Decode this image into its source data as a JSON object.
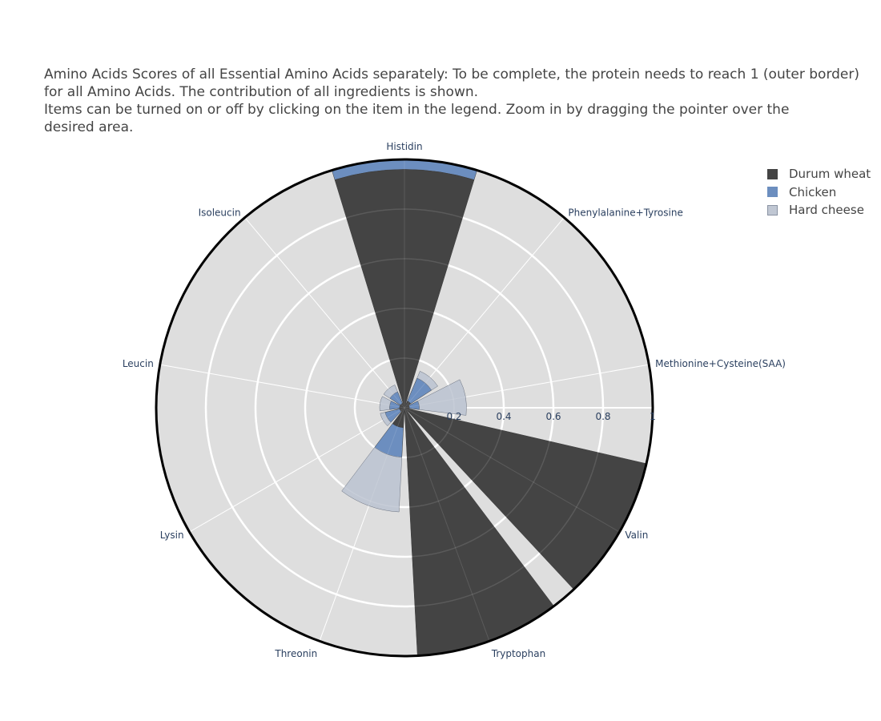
{
  "title": {
    "lines": [
      "Amino Acids Scores of all Essential Amino Acids separately: To be complete, the protein needs to reach 1 (outer border)",
      "for all Amino Acids. The contribution of all ingredients is shown.",
      "Items can be turned on or off by clicking on the item in the legend. Zoom in by dragging the pointer over the",
      "desired area."
    ]
  },
  "legend": {
    "items": [
      {
        "label": "Durum wheat",
        "color": "#444444"
      },
      {
        "label": "Chicken",
        "color": "#6c8ebf"
      },
      {
        "label": "Hard cheese",
        "color": "#c0c7d3"
      }
    ]
  },
  "chart_data": {
    "type": "barpolar",
    "stacked": true,
    "categories": [
      "Histidin",
      "Phenylalanine+Tyrosine",
      "Methionine+Cysteine(SAA)",
      "Valin",
      "Tryptophan",
      "Threonin",
      "Lysin",
      "Leucin",
      "Isoleucin"
    ],
    "category_angles_deg": [
      90,
      50,
      10,
      -30,
      -70,
      -110,
      -150,
      170,
      130
    ],
    "bar_angular_width_deg": 34,
    "radial_range": [
      0,
      1
    ],
    "radial_ticks": [
      0.2,
      0.4,
      0.6,
      0.8,
      1
    ],
    "radial_tick_labels": [
      "0.2",
      "0.4",
      "0.6",
      "0.8",
      "1"
    ],
    "series": [
      {
        "name": "Durum wheat",
        "color": "#444444",
        "values": [
          0.96,
          0.03,
          0.02,
          1.0,
          1.0,
          0.08,
          0.02,
          0.02,
          0.02
        ]
      },
      {
        "name": "Chicken",
        "color": "#6c8ebf",
        "values": [
          0.04,
          0.1,
          0.04,
          0.0,
          0.0,
          0.12,
          0.06,
          0.04,
          0.05
        ]
      },
      {
        "name": "Hard cheese",
        "color": "#c0c7d3",
        "values": [
          0.0,
          0.03,
          0.19,
          0.0,
          0.0,
          0.22,
          0.02,
          0.04,
          0.03
        ]
      }
    ],
    "background_color": "#dedede",
    "grid": true
  }
}
